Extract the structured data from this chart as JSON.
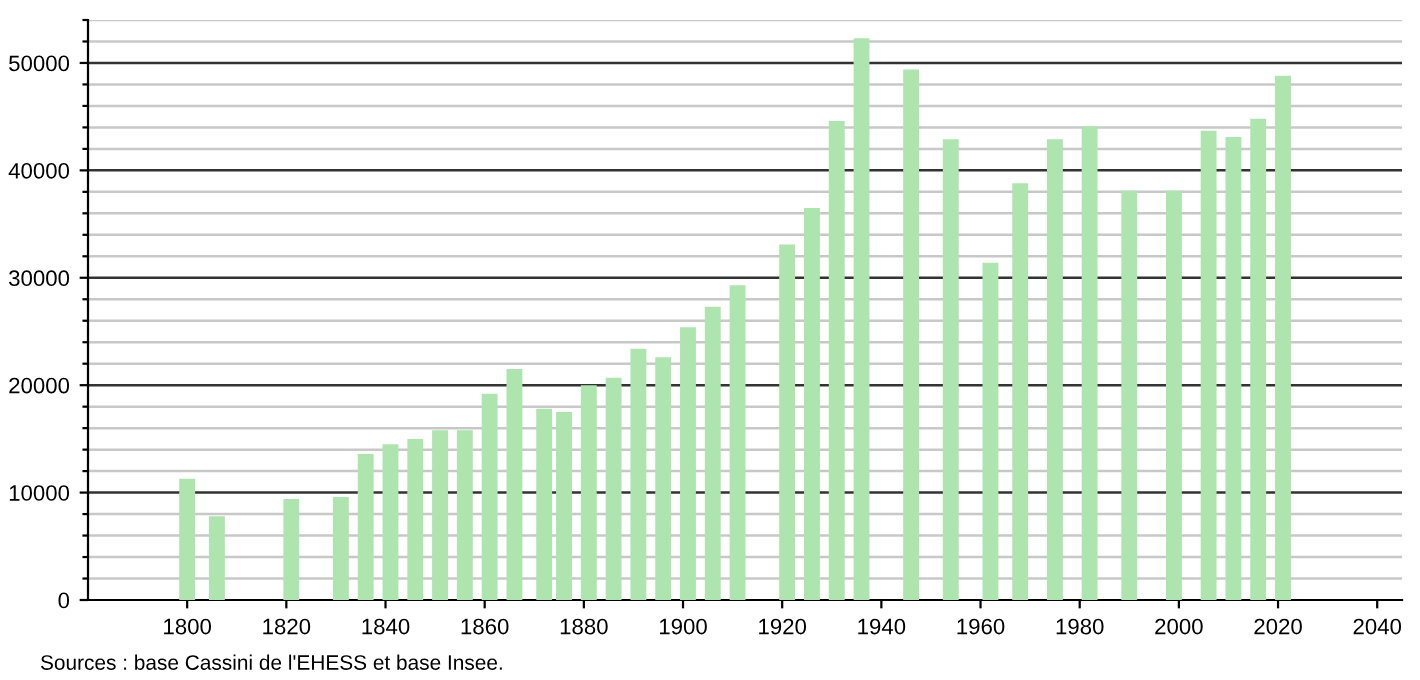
{
  "chart_data": {
    "type": "bar",
    "x": [
      1800,
      1806,
      1821,
      1831,
      1836,
      1841,
      1846,
      1851,
      1856,
      1861,
      1866,
      1872,
      1876,
      1881,
      1886,
      1891,
      1896,
      1901,
      1906,
      1911,
      1921,
      1926,
      1931,
      1936,
      1946,
      1954,
      1962,
      1968,
      1975,
      1982,
      1990,
      1999,
      2006,
      2011,
      2016,
      2021
    ],
    "values": [
      11300,
      7800,
      9400,
      9600,
      13600,
      14500,
      15000,
      15800,
      15800,
      19200,
      21500,
      17800,
      17500,
      20000,
      20700,
      23400,
      22600,
      25400,
      27300,
      29300,
      33100,
      36500,
      44600,
      52300,
      49400,
      42900,
      31400,
      38800,
      42900,
      44100,
      38100,
      38100,
      43700,
      43100,
      44800,
      48800
    ],
    "color": "#aee4ae",
    "xlim": [
      1780,
      2045
    ],
    "xticks": [
      1800,
      1820,
      1840,
      1860,
      1880,
      1900,
      1920,
      1940,
      1960,
      1980,
      2000,
      2020,
      2040
    ],
    "ylim": [
      0,
      54000
    ],
    "yticks": [
      0,
      {
        "value": 2000,
        "label": null
      },
      {
        "value": 4000,
        "label": null
      },
      {
        "value": 6000,
        "label": null
      },
      {
        "value": 8000,
        "label": null
      },
      10000,
      {
        "value": 12000,
        "label": null
      },
      {
        "value": 14000,
        "label": null
      },
      {
        "value": 16000,
        "label": null
      },
      {
        "value": 18000,
        "label": null
      },
      20000,
      {
        "value": 22000,
        "label": null
      },
      {
        "value": 24000,
        "label": null
      },
      {
        "value": 26000,
        "label": null
      },
      {
        "value": 28000,
        "label": null
      },
      30000,
      {
        "value": 32000,
        "label": null
      },
      {
        "value": 34000,
        "label": null
      },
      {
        "value": 36000,
        "label": null
      },
      {
        "value": 38000,
        "label": null
      },
      40000,
      {
        "value": 42000,
        "label": null
      },
      {
        "value": 44000,
        "label": null
      },
      {
        "value": 46000,
        "label": null
      },
      {
        "value": 48000,
        "label": null
      },
      50000,
      {
        "value": 52000,
        "label": null
      },
      {
        "value": 54000,
        "label": null
      }
    ],
    "grid": "y",
    "annotations": [
      "Sources : base Cassini de l'EHESS et base Insee."
    ]
  }
}
